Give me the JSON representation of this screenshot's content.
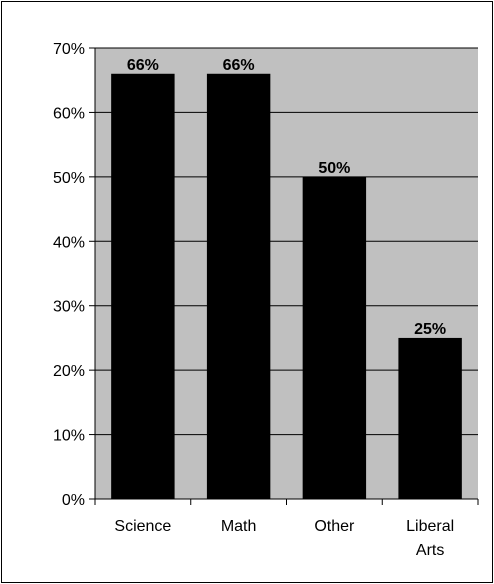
{
  "chart_data": {
    "type": "bar",
    "title": "",
    "xlabel": "",
    "ylabel": "",
    "categories": [
      "Science",
      "Math",
      "Other",
      "Liberal Arts"
    ],
    "category_label_lines": [
      [
        "Science"
      ],
      [
        "Math"
      ],
      [
        "Other"
      ],
      [
        "Liberal",
        "Arts"
      ]
    ],
    "values": [
      66,
      66,
      50,
      25
    ],
    "value_labels": [
      "66%",
      "66%",
      "50%",
      "25%"
    ],
    "ylim": [
      0,
      70
    ],
    "yticks": [
      0,
      10,
      20,
      30,
      40,
      50,
      60,
      70
    ],
    "ytick_labels": [
      "0%",
      "10%",
      "20%",
      "30%",
      "40%",
      "50%",
      "60%",
      "70%"
    ],
    "grid": true,
    "legend": "none",
    "colors": {
      "bar": "#000000",
      "plot_background": "#c0c0c0",
      "gridline": "#000000",
      "frame": "#000000"
    }
  }
}
